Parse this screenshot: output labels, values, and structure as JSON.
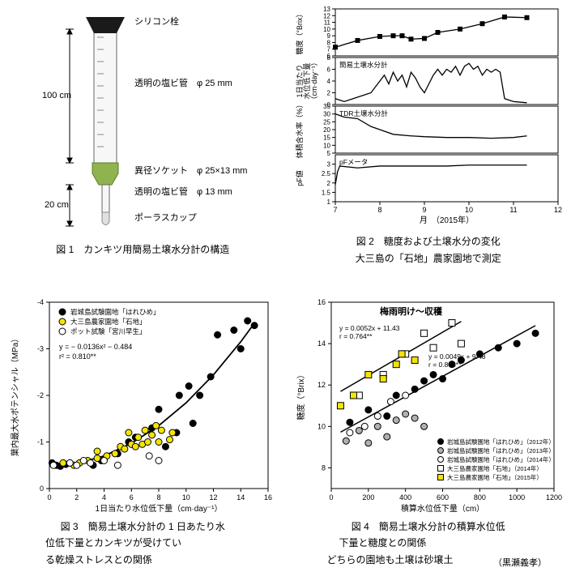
{
  "fig1": {
    "caption": "図 1　カンキツ用簡易土壌水分計の構造",
    "labels": {
      "plug": "シリコン栓",
      "tube_large": "透明の塩ビ管　φ 25 mm",
      "socket": "異径ソケット　φ 25×13 mm",
      "tube_small": "透明の塩ビ管　φ 13 mm",
      "cup": "ポーラスカップ",
      "h_top": "100 cm",
      "h_bottom": "20 cm"
    },
    "colors": {
      "plug": "#1a1a1a",
      "socket": "#8fb44f",
      "tube_outline": "#646464",
      "cup": "#e0e0e0",
      "dim_line": "#000000"
    }
  },
  "fig2": {
    "caption_line1": "図 2　糖度および土壌水分の変化",
    "caption_line2": "大三島の「石地」農家園地で測定",
    "panels": [
      {
        "ylabel": "糖度（°Brix）",
        "ymin": 6,
        "ymax": 13,
        "yticks": [
          6,
          7,
          8,
          9,
          10,
          11,
          12,
          13
        ],
        "data": [
          {
            "x": 7.0,
            "y": 7.3
          },
          {
            "x": 7.5,
            "y": 8.3
          },
          {
            "x": 8.0,
            "y": 8.9
          },
          {
            "x": 8.3,
            "y": 9.0
          },
          {
            "x": 8.5,
            "y": 9.0
          },
          {
            "x": 8.7,
            "y": 8.5
          },
          {
            "x": 9.0,
            "y": 8.6
          },
          {
            "x": 9.3,
            "y": 9.5
          },
          {
            "x": 9.8,
            "y": 10.0
          },
          {
            "x": 10.3,
            "y": 10.8
          },
          {
            "x": 10.8,
            "y": 11.8
          },
          {
            "x": 11.3,
            "y": 11.7
          }
        ],
        "marker": "square",
        "color": "#000000"
      },
      {
        "ylabel": "1日当たり\n水位低下量\n（cm·day⁻¹）",
        "ymin": 0,
        "ymax": 8,
        "yticks": [
          0,
          2,
          4,
          6,
          8
        ],
        "inset_label": "簡易土壌水分計",
        "data": [
          {
            "x": 7.0,
            "y": 1
          },
          {
            "x": 7.2,
            "y": 0.5
          },
          {
            "x": 7.4,
            "y": 1
          },
          {
            "x": 7.6,
            "y": 1.5
          },
          {
            "x": 7.8,
            "y": 2
          },
          {
            "x": 8.0,
            "y": 4
          },
          {
            "x": 8.1,
            "y": 5
          },
          {
            "x": 8.2,
            "y": 3.5
          },
          {
            "x": 8.3,
            "y": 5.5
          },
          {
            "x": 8.4,
            "y": 4
          },
          {
            "x": 8.5,
            "y": 5
          },
          {
            "x": 8.6,
            "y": 3
          },
          {
            "x": 8.7,
            "y": 5.5
          },
          {
            "x": 8.8,
            "y": 4.5
          },
          {
            "x": 8.9,
            "y": 3
          },
          {
            "x": 9.0,
            "y": 2
          },
          {
            "x": 9.1,
            "y": 3.5
          },
          {
            "x": 9.2,
            "y": 5
          },
          {
            "x": 9.3,
            "y": 6
          },
          {
            "x": 9.4,
            "y": 5
          },
          {
            "x": 9.5,
            "y": 6
          },
          {
            "x": 9.6,
            "y": 5.5
          },
          {
            "x": 9.7,
            "y": 6.5
          },
          {
            "x": 9.8,
            "y": 5
          },
          {
            "x": 9.9,
            "y": 6.5
          },
          {
            "x": 10.0,
            "y": 7
          },
          {
            "x": 10.1,
            "y": 6
          },
          {
            "x": 10.2,
            "y": 6.5
          },
          {
            "x": 10.3,
            "y": 5
          },
          {
            "x": 10.4,
            "y": 6
          },
          {
            "x": 10.5,
            "y": 5.5
          },
          {
            "x": 10.6,
            "y": 6
          },
          {
            "x": 10.7,
            "y": 5.5
          },
          {
            "x": 10.8,
            "y": 1
          },
          {
            "x": 11.0,
            "y": 0.5
          },
          {
            "x": 11.3,
            "y": 0.3
          }
        ],
        "color": "#000000"
      },
      {
        "ylabel": "体積含水率（%）",
        "ymin": 5,
        "ymax": 35,
        "yticks": [
          5,
          10,
          15,
          20,
          25,
          30,
          35
        ],
        "inset_label": "TDR土壌水分計",
        "data": [
          {
            "x": 7.0,
            "y": 30
          },
          {
            "x": 7.2,
            "y": 28
          },
          {
            "x": 7.5,
            "y": 27
          },
          {
            "x": 7.8,
            "y": 22
          },
          {
            "x": 8.0,
            "y": 20
          },
          {
            "x": 8.3,
            "y": 17
          },
          {
            "x": 8.7,
            "y": 16
          },
          {
            "x": 9.0,
            "y": 15.5
          },
          {
            "x": 9.5,
            "y": 15
          },
          {
            "x": 10.0,
            "y": 15
          },
          {
            "x": 10.5,
            "y": 14.5
          },
          {
            "x": 11.0,
            "y": 15
          },
          {
            "x": 11.3,
            "y": 16
          }
        ],
        "color": "#000000"
      },
      {
        "ylabel": "pF値",
        "ymin": 1,
        "ymax": 3.5,
        "yticks": [
          1,
          1.5,
          2,
          2.5,
          3
        ],
        "inset_label": "pFメータ",
        "data": [
          {
            "x": 7.0,
            "y": 1.9
          },
          {
            "x": 7.05,
            "y": 2.6
          },
          {
            "x": 7.1,
            "y": 2.9
          },
          {
            "x": 7.5,
            "y": 2.8
          },
          {
            "x": 8.0,
            "y": 2.9
          },
          {
            "x": 8.5,
            "y": 2.9
          },
          {
            "x": 9.0,
            "y": 2.9
          },
          {
            "x": 9.5,
            "y": 2.9
          },
          {
            "x": 10.0,
            "y": 2.95
          },
          {
            "x": 10.5,
            "y": 2.95
          },
          {
            "x": 11.0,
            "y": 2.95
          },
          {
            "x": 11.3,
            "y": 2.95
          }
        ],
        "color": "#000000"
      }
    ],
    "xmin": 7,
    "xmax": 12,
    "xticks": [
      7,
      8,
      9,
      10,
      11,
      12
    ],
    "xlabel": "月　（2015年）"
  },
  "fig3": {
    "caption_line1": "図 3　簡易土壌水分計の 1 日あたり水",
    "caption_line2": "位低下量とカンキツが受けてい",
    "caption_line3": "る乾燥ストレスとの関係",
    "xlabel": "1日当たり水位低下量（cm·day⁻¹）",
    "ylabel": "葉内最大水ポテンシャル（MPa）",
    "xmin": 0,
    "xmax": 16,
    "xticks": [
      0,
      2,
      4,
      6,
      8,
      10,
      12,
      14,
      16
    ],
    "ymin": 0,
    "ymax": -4,
    "yticks": [
      0,
      -1,
      -2,
      -3,
      -4
    ],
    "eqn": "y = − 0.0136x² − 0.484",
    "r2": "r² = 0.810**",
    "legend": [
      {
        "label": "岩城島試験園地「はれひめ」",
        "marker": "circle",
        "fill": "#000000"
      },
      {
        "label": "大三島農家園地「石地」",
        "marker": "circle",
        "fill": "#f5e400"
      },
      {
        "label": "ポット試験「宮川早生」",
        "marker": "circle",
        "fill": "#ffffff",
        "stroke": "#000000"
      }
    ],
    "curve": [
      {
        "x": 0,
        "y": -0.48
      },
      {
        "x": 2,
        "y": -0.54
      },
      {
        "x": 4,
        "y": -0.7
      },
      {
        "x": 6,
        "y": -0.97
      },
      {
        "x": 8,
        "y": -1.35
      },
      {
        "x": 10,
        "y": -1.84
      },
      {
        "x": 12,
        "y": -2.44
      },
      {
        "x": 14,
        "y": -3.15
      },
      {
        "x": 15,
        "y": -3.55
      }
    ],
    "series": [
      {
        "fill": "#000000",
        "pts": [
          [
            0.2,
            -0.55
          ],
          [
            0.5,
            -0.5
          ],
          [
            0.8,
            -0.48
          ],
          [
            1.2,
            -0.52
          ],
          [
            1.5,
            -0.55
          ],
          [
            3.2,
            -0.5
          ],
          [
            3.8,
            -0.6
          ],
          [
            5.0,
            -0.75
          ],
          [
            5.8,
            -1.0
          ],
          [
            6.3,
            -1.1
          ],
          [
            7.5,
            -1.3
          ],
          [
            8.0,
            -1.7
          ],
          [
            8.5,
            -0.9
          ],
          [
            9.3,
            -1.2
          ],
          [
            9.5,
            -2.0
          ],
          [
            10.2,
            -2.2
          ],
          [
            10.5,
            -1.4
          ],
          [
            11.0,
            -2.0
          ],
          [
            11.8,
            -2.4
          ],
          [
            12.3,
            -3.3
          ],
          [
            13.5,
            -3.4
          ],
          [
            14.0,
            -3.0
          ],
          [
            14.5,
            -3.6
          ],
          [
            15.0,
            -3.5
          ]
        ]
      },
      {
        "fill": "#f5e400",
        "pts": [
          [
            1.0,
            -0.55
          ],
          [
            1.8,
            -0.5
          ],
          [
            2.2,
            -0.55
          ],
          [
            2.8,
            -0.6
          ],
          [
            3.5,
            -0.65
          ],
          [
            3.5,
            -0.8
          ],
          [
            4.2,
            -0.7
          ],
          [
            4.8,
            -0.75
          ],
          [
            5.2,
            -0.9
          ],
          [
            5.5,
            -0.85
          ],
          [
            5.8,
            -1.2
          ],
          [
            6.0,
            -0.95
          ],
          [
            6.3,
            -0.9
          ],
          [
            6.5,
            -1.1
          ],
          [
            6.8,
            -0.95
          ],
          [
            7.0,
            -1.25
          ],
          [
            7.2,
            -1.0
          ],
          [
            7.5,
            -1.15
          ],
          [
            7.8,
            -1.35
          ],
          [
            8.0,
            -1.0
          ],
          [
            8.2,
            -1.25
          ],
          [
            8.8,
            -1.05
          ],
          [
            9.0,
            -1.2
          ]
        ]
      },
      {
        "fill": "#ffffff",
        "stroke": "#000",
        "pts": [
          [
            0.3,
            -0.5
          ],
          [
            1.5,
            -0.55
          ],
          [
            2.0,
            -0.5
          ],
          [
            2.5,
            -0.6
          ],
          [
            3.0,
            -0.55
          ],
          [
            4.0,
            -0.6
          ],
          [
            7.3,
            -0.7
          ],
          [
            8.0,
            -0.6
          ],
          [
            5.0,
            -0.5
          ]
        ]
      }
    ]
  },
  "fig4": {
    "caption_line1": "図 4　簡易土壌水分計の積算水位低",
    "caption_line2": "下量と糖度との関係",
    "caption_line3": "どちらの園地も土壌は砂壌土",
    "xlabel": "積算水位低下量（cm）",
    "ylabel": "糖度（°Brix）",
    "xmin": 0,
    "xmax": 1200,
    "xticks": [
      0,
      200,
      400,
      600,
      800,
      1000,
      1200
    ],
    "ymin": 7,
    "ymax": 16,
    "yticks": [
      8,
      10,
      12,
      14,
      16
    ],
    "topright": "梅雨明け～収穫",
    "lines": [
      {
        "eqn": "y = 0.0052x + 11.43",
        "r": "r = 0.764**",
        "a": 0.0052,
        "b": 11.43,
        "x1": 50,
        "x2": 700
      },
      {
        "eqn": "y = 0.0049x + 9.48",
        "r": "r = 0.845**",
        "a": 0.0049,
        "b": 9.48,
        "x1": 50,
        "x2": 1100
      }
    ],
    "legend": [
      {
        "label": "岩城島試験園地「はれひめ」（2012年）",
        "marker": "circle",
        "fill": "#000000"
      },
      {
        "label": "岩城島試験園地「はれひめ」（2013年）",
        "marker": "circle",
        "fill": "#b0b0b0"
      },
      {
        "label": "岩城島試験園地「はれひめ」（2014年）",
        "marker": "circle",
        "fill": "#ffffff",
        "stroke": "#000"
      },
      {
        "label": "大三島農家園地「石地」（2014年）",
        "marker": "square",
        "fill": "#ffffff",
        "stroke": "#000"
      },
      {
        "label": "大三島農家園地「石地」（2015年）",
        "marker": "square",
        "fill": "#f5e400"
      }
    ],
    "series": [
      {
        "marker": "circle",
        "fill": "#000000",
        "pts": [
          [
            100,
            10.2
          ],
          [
            200,
            10.8
          ],
          [
            300,
            10.5
          ],
          [
            350,
            11.5
          ],
          [
            450,
            11.8
          ],
          [
            500,
            12.2
          ],
          [
            550,
            12.5
          ],
          [
            600,
            12.3
          ],
          [
            650,
            13.0
          ],
          [
            700,
            13.2
          ],
          [
            800,
            13.5
          ],
          [
            900,
            13.8
          ],
          [
            1000,
            14.0
          ],
          [
            1100,
            14.5
          ]
        ]
      },
      {
        "marker": "circle",
        "fill": "#b0b0b0",
        "pts": [
          [
            80,
            9.3
          ],
          [
            150,
            9.8
          ],
          [
            200,
            9.2
          ],
          [
            250,
            10.0
          ],
          [
            300,
            9.5
          ],
          [
            350,
            10.3
          ],
          [
            400,
            10.6
          ],
          [
            450,
            10.4
          ],
          [
            500,
            10.0
          ]
        ]
      },
      {
        "marker": "circle",
        "fill": "#ffffff",
        "stroke": "#000",
        "pts": [
          [
            100,
            9.7
          ],
          [
            180,
            10.0
          ],
          [
            250,
            10.5
          ],
          [
            320,
            11.2
          ],
          [
            400,
            11.5
          ]
        ]
      },
      {
        "marker": "square",
        "fill": "#ffffff",
        "stroke": "#000",
        "pts": [
          [
            150,
            11.5
          ],
          [
            280,
            12.5
          ],
          [
            400,
            13.5
          ],
          [
            500,
            14.5
          ],
          [
            550,
            13.8
          ],
          [
            650,
            15.0
          ],
          [
            700,
            14.0
          ]
        ]
      },
      {
        "marker": "square",
        "fill": "#f5e400",
        "pts": [
          [
            50,
            11.0
          ],
          [
            120,
            11.5
          ],
          [
            200,
            12.5
          ],
          [
            280,
            12.3
          ],
          [
            380,
            13.5
          ],
          [
            350,
            13.0
          ],
          [
            450,
            13.2
          ]
        ]
      }
    ]
  },
  "author": "（黒瀬義孝）",
  "colors": {
    "background": "#ffffff",
    "axis": "#000000",
    "grid": "#cccccc"
  }
}
